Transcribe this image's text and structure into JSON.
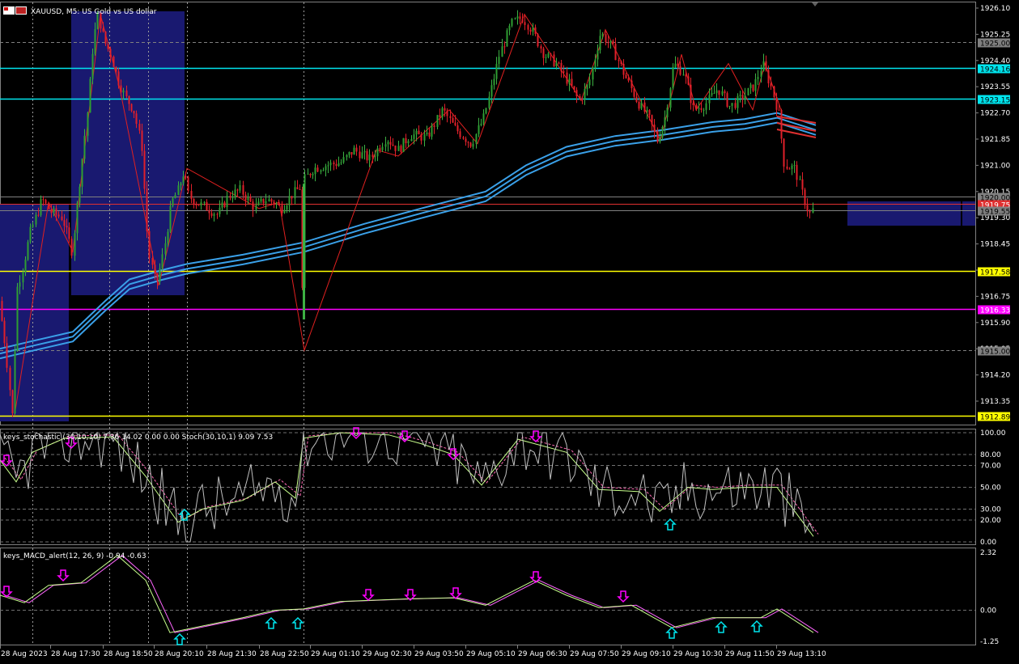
{
  "window": {
    "symbol": "XAUUSD",
    "timeframe": "M5",
    "description": "US Gold vs US dollar",
    "title_full": "XAUUSD, M5:  US Gold vs US dollar"
  },
  "colors": {
    "background": "#000000",
    "bull": "#2e9e32",
    "bear": "#e0202a",
    "wick_bull": "#3cb043",
    "zone": "#191970",
    "cyan_line": "#00e5ee",
    "yellow_line": "#ffff00",
    "magenta_line": "#ff00ff",
    "ma_blue": "#3aa0e8",
    "ma_red": "#e03030",
    "zigzag": "#e02020",
    "stoch_main": "#c8ff8c",
    "stoch_signal": "#ff69b4",
    "stoch_raw": "#c0c0c0",
    "macd_main": "#c8ff8c",
    "macd_signal": "#ff66ff",
    "arrow_down": "#ff00ff",
    "arrow_up": "#00e5ee"
  },
  "price_axis": {
    "labels": [
      "1926.10",
      "1925.25",
      "1924.40",
      "1923.55",
      "1922.70",
      "1921.85",
      "1921.00",
      "1920.15",
      "1919.30",
      "1918.45",
      "1917.60",
      "1916.75",
      "1915.90",
      "1915.05",
      "1914.20",
      "1913.35"
    ],
    "values": [
      1926.1,
      1925.25,
      1924.4,
      1923.55,
      1922.7,
      1921.85,
      1921.0,
      1920.15,
      1919.3,
      1918.45,
      1917.6,
      1916.75,
      1915.9,
      1915.05,
      1914.2,
      1913.35
    ],
    "min": 1912.8,
    "max": 1926.2
  },
  "levels": [
    {
      "price": 1925.0,
      "label": "1925.00",
      "kind": "dash-gray"
    },
    {
      "price": 1924.16,
      "label": "1924.16",
      "kind": "cyan"
    },
    {
      "price": 1923.15,
      "label": "1923.15",
      "kind": "cyan"
    },
    {
      "price": 1920.0,
      "label": "1920.00",
      "kind": "gray"
    },
    {
      "price": 1919.75,
      "label": "1919.75",
      "kind": "red"
    },
    {
      "price": 1919.55,
      "label": "1919.55",
      "kind": "gray"
    },
    {
      "price": 1917.58,
      "label": "1917.58",
      "kind": "yellow"
    },
    {
      "price": 1916.33,
      "label": "1916.33",
      "kind": "magenta"
    },
    {
      "price": 1915.0,
      "label": "1915.00",
      "kind": "dash-gray"
    },
    {
      "price": 1912.89,
      "label": "1912.89",
      "kind": "yellow"
    }
  ],
  "time_axis": {
    "labels": [
      "28 Aug 2023",
      "28 Aug 17:30",
      "28 Aug 18:50",
      "28 Aug 20:10",
      "28 Aug 21:30",
      "28 Aug 22:50",
      "29 Aug 01:10",
      "29 Aug 02:30",
      "29 Aug 03:50",
      "29 Aug 05:10",
      "29 Aug 06:30",
      "29 Aug 07:50",
      "29 Aug 09:10",
      "29 Aug 10:30",
      "29 Aug 11:50",
      "29 Aug 13:10"
    ]
  },
  "stochastic": {
    "label": "keys_stochastic (30,10,10) 7.36 14.02 0.00 0.00 Stoch(30,10,1) 9.09 7.53",
    "axis_labels": [
      "100.00",
      "80.00",
      "70.00",
      "50.00",
      "30.00",
      "20.00",
      "0.00"
    ],
    "axis_values": [
      100,
      80,
      70,
      50,
      30,
      20,
      0
    ]
  },
  "macd": {
    "label": "keys_MACD_alert(12, 26, 9) -0.94 -0.63",
    "axis_labels": [
      "2.32",
      "0.00",
      "-1.25"
    ],
    "axis_values": [
      2.32,
      0,
      -1.25
    ],
    "min": -1.4,
    "max": 2.4
  }
}
